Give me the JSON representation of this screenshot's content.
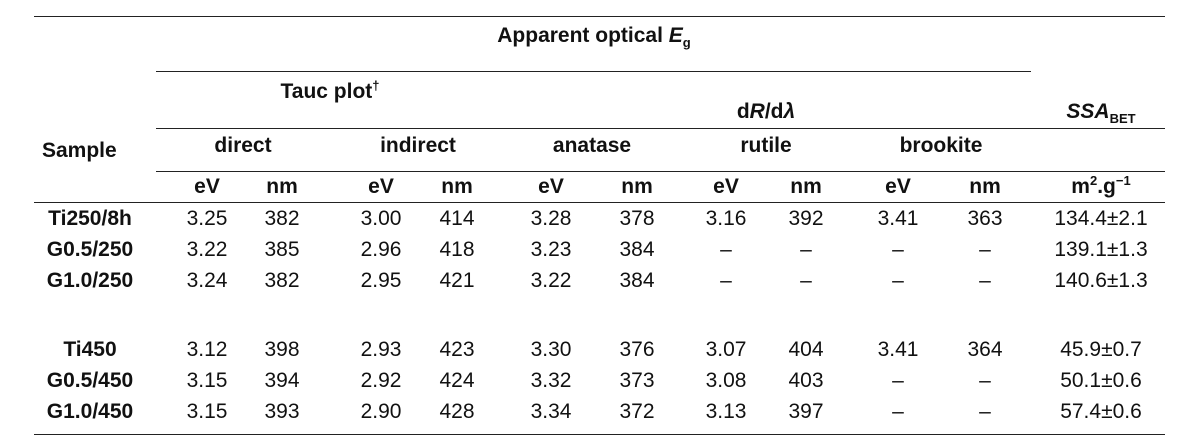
{
  "table": {
    "header": {
      "apparent_main": "Apparent optical ",
      "apparent_var": "E",
      "apparent_sub": "g",
      "tauc": "Tauc plot",
      "tauc_mark": "†",
      "drdl_d1": "d",
      "drdl_R": "R",
      "drdl_slash": "/d",
      "drdl_lambda": "λ",
      "ssa_main": "SSA",
      "ssa_sub": "BET",
      "sample": "Sample",
      "groups": [
        "direct",
        "indirect",
        "anatase",
        "rutile",
        "brookite"
      ],
      "units": [
        "eV",
        "nm",
        "eV",
        "nm",
        "eV",
        "nm",
        "eV",
        "nm",
        "eV",
        "nm"
      ],
      "ssa_unit_m": "m",
      "ssa_unit_sup1": "2",
      "ssa_unit_g": ".g",
      "ssa_unit_sup2": "−1"
    },
    "rows": [
      {
        "sample": "Ti250/8h",
        "values": [
          "3.25",
          "382",
          "3.00",
          "414",
          "3.28",
          "378",
          "3.16",
          "392",
          "3.41",
          "363"
        ],
        "ssa": "134.4±2.1"
      },
      {
        "sample": "G0.5/250",
        "values": [
          "3.22",
          "385",
          "2.96",
          "418",
          "3.23",
          "384",
          "–",
          "–",
          "–",
          "–"
        ],
        "ssa": "139.1±1.3"
      },
      {
        "sample": "G1.0/250",
        "values": [
          "3.24",
          "382",
          "2.95",
          "421",
          "3.22",
          "384",
          "–",
          "–",
          "–",
          "–"
        ],
        "ssa": "140.6±1.3"
      },
      {
        "sample": "Ti450",
        "values": [
          "3.12",
          "398",
          "2.93",
          "423",
          "3.30",
          "376",
          "3.07",
          "404",
          "3.41",
          "364"
        ],
        "ssa": "45.9±0.7"
      },
      {
        "sample": "G0.5/450",
        "values": [
          "3.15",
          "394",
          "2.92",
          "424",
          "3.32",
          "373",
          "3.08",
          "403",
          "–",
          "–"
        ],
        "ssa": "50.1±0.6"
      },
      {
        "sample": "G1.0/450",
        "values": [
          "3.15",
          "393",
          "2.90",
          "428",
          "3.34",
          "372",
          "3.13",
          "397",
          "–",
          "–"
        ],
        "ssa": "57.4±0.6"
      }
    ]
  }
}
